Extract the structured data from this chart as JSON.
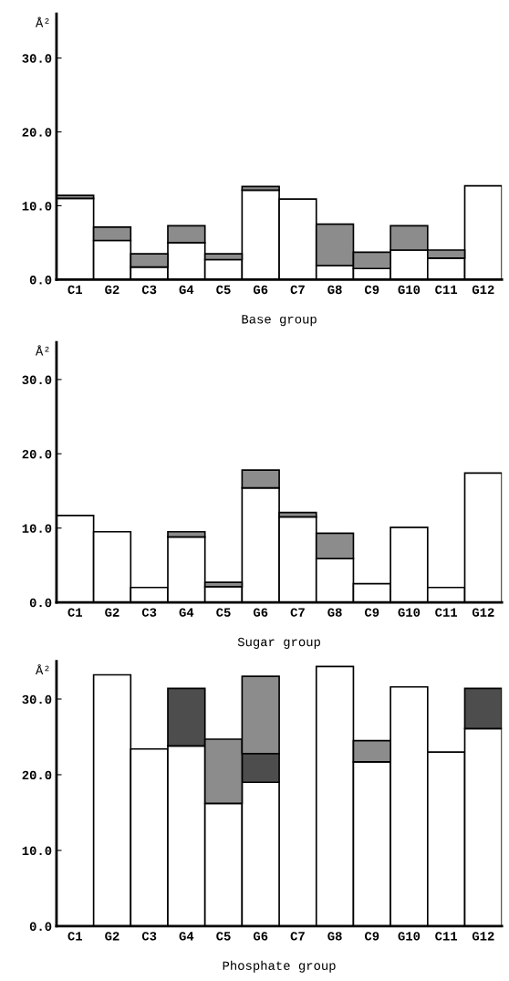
{
  "chart_data": [
    {
      "type": "bar",
      "stacked": true,
      "xlabel": "Base group",
      "ylabel": "Å²",
      "categories": [
        "C1",
        "G2",
        "C3",
        "G4",
        "C5",
        "G6",
        "C7",
        "G8",
        "C9",
        "G10",
        "C11",
        "G12"
      ],
      "series": [
        {
          "color": "#ffffff",
          "values": [
            11.0,
            5.3,
            1.7,
            5.0,
            2.7,
            12.1,
            10.9,
            1.9,
            1.5,
            4.0,
            2.9,
            12.7
          ]
        },
        {
          "color": "#8c8c8c",
          "values": [
            0.4,
            1.8,
            1.8,
            2.3,
            0.8,
            0.5,
            null,
            5.6,
            2.2,
            3.3,
            1.1,
            null
          ]
        }
      ],
      "ylim": [
        0,
        36
      ],
      "yticks": [
        {
          "value": 0,
          "label": "0.0"
        },
        {
          "value": 10,
          "label": "10.0"
        },
        {
          "value": 20,
          "label": "20.0"
        },
        {
          "value": 30,
          "label": "30.0"
        }
      ],
      "grid": false
    },
    {
      "type": "bar",
      "stacked": true,
      "xlabel": "Sugar group",
      "ylabel": "Å²",
      "categories": [
        "C1",
        "G2",
        "C3",
        "G4",
        "C5",
        "G6",
        "C7",
        "G8",
        "C9",
        "G10",
        "C11",
        "G12"
      ],
      "series": [
        {
          "color": "#ffffff",
          "values": [
            11.7,
            9.5,
            2.0,
            8.8,
            2.1,
            15.4,
            11.5,
            5.9,
            2.5,
            10.1,
            2.0,
            17.4
          ]
        },
        {
          "color": "#8c8c8c",
          "values": [
            null,
            null,
            null,
            0.7,
            0.6,
            2.4,
            0.6,
            3.4,
            null,
            null,
            null,
            null
          ]
        }
      ],
      "ylim": [
        0,
        35
      ],
      "yticks": [
        {
          "value": 0,
          "label": "0.0"
        },
        {
          "value": 10,
          "label": "10.0"
        },
        {
          "value": 20,
          "label": "20.0"
        },
        {
          "value": 30,
          "label": "30.0"
        }
      ],
      "grid": false
    },
    {
      "type": "bar",
      "stacked": true,
      "xlabel": "Phosphate group",
      "ylabel": "Å²",
      "categories": [
        "C1",
        "G2",
        "C3",
        "G4",
        "C5",
        "G6",
        "C7",
        "G8",
        "C9",
        "G10",
        "C11",
        "G12"
      ],
      "series": [
        {
          "color": "#ffffff",
          "values": [
            null,
            33.2,
            23.4,
            23.8,
            16.2,
            19.0,
            null,
            34.3,
            21.7,
            31.6,
            23.0,
            26.1
          ]
        },
        {
          "color": "#4d4d4d",
          "values": [
            null,
            null,
            null,
            7.6,
            null,
            3.8,
            null,
            null,
            null,
            null,
            null,
            5.3
          ]
        },
        {
          "color": "#8c8c8c",
          "values": [
            null,
            null,
            null,
            null,
            8.5,
            10.2,
            null,
            null,
            2.8,
            null,
            null,
            null
          ]
        }
      ],
      "ylim": [
        0,
        35
      ],
      "yticks": [
        {
          "value": 0,
          "label": "0.0"
        },
        {
          "value": 10,
          "label": "10.0"
        },
        {
          "value": 20,
          "label": "20.0"
        },
        {
          "value": 30,
          "label": "30.0"
        }
      ],
      "grid": false
    }
  ]
}
